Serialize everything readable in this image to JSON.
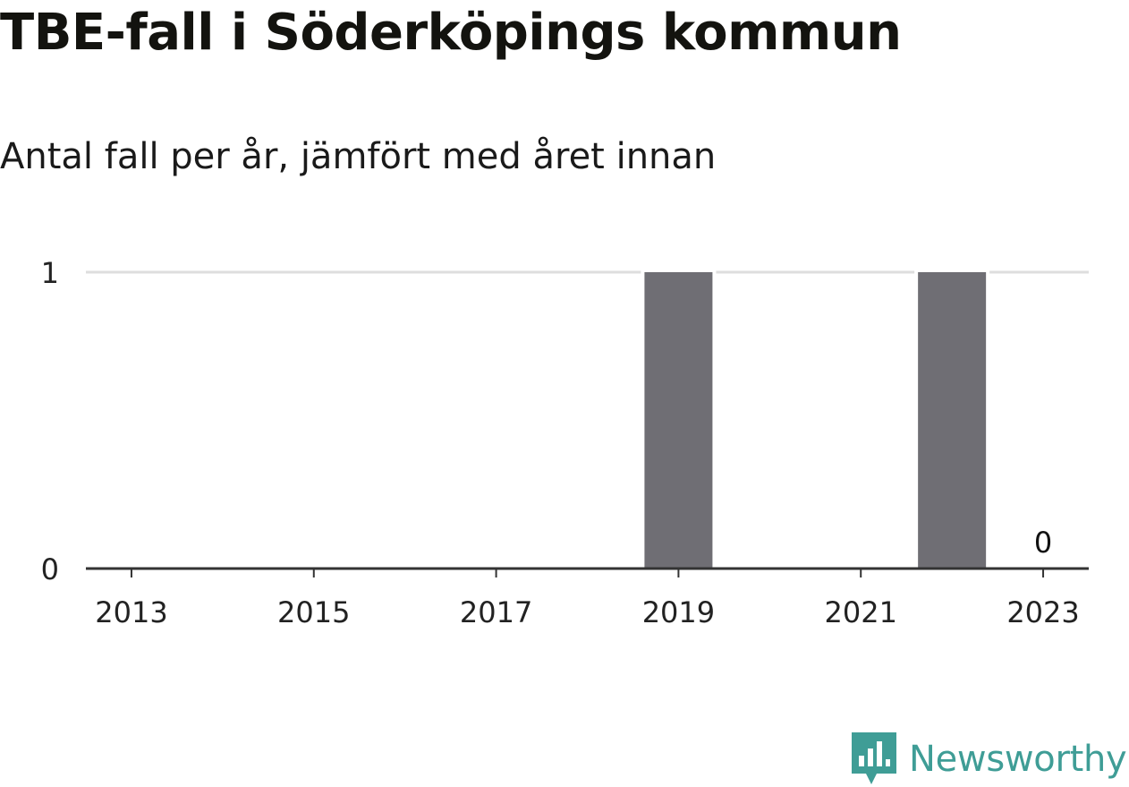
{
  "header": {
    "title": "TBE-fall i Söderköpings kommun",
    "subtitle": "Antal fall per år, jämfört med året innan"
  },
  "chart_data": {
    "type": "bar",
    "categories": [
      "2013",
      "2014",
      "2015",
      "2016",
      "2017",
      "2018",
      "2019",
      "2020",
      "2021",
      "2022",
      "2023"
    ],
    "values": [
      0,
      0,
      0,
      0,
      0,
      0,
      1,
      0,
      0,
      1,
      0
    ],
    "x_tick_labels": [
      "2013",
      "2015",
      "2017",
      "2019",
      "2021",
      "2023"
    ],
    "y_ticks": [
      0,
      1
    ],
    "ylim": [
      0,
      1
    ],
    "data_labels": [
      {
        "category": "2023",
        "text": "0"
      }
    ],
    "title": "TBE-fall i Söderköpings kommun",
    "subtitle": "Antal fall per år, jämfört med året innan",
    "xlabel": "",
    "ylabel": "",
    "grid": true,
    "colors": {
      "bar": "#6f6e74",
      "grid": "#dedede",
      "axis": "#333333",
      "text": "#222222"
    }
  },
  "brand": {
    "name": "Newsworthy",
    "icon": "newsworthy-logo-icon",
    "color": "#3f9d96"
  }
}
